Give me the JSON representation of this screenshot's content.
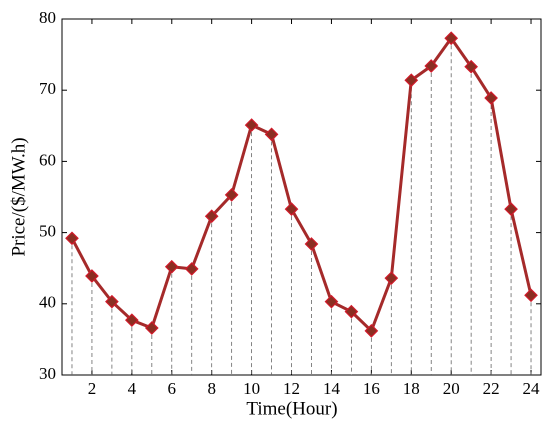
{
  "chart_data": {
    "type": "line",
    "x_label": "Time(Hour)",
    "y_label": "Price/($/MW.h)",
    "x": [
      1,
      2,
      3,
      4,
      5,
      6,
      7,
      8,
      9,
      10,
      11,
      12,
      13,
      14,
      15,
      16,
      17,
      18,
      19,
      20,
      21,
      22,
      23,
      24
    ],
    "series": [
      {
        "color": "#a52a2a",
        "marker_color": "#8b2e22",
        "values": [
          49.2,
          43.9,
          40.3,
          37.7,
          36.6,
          45.2,
          44.9,
          52.3,
          55.3,
          65.1,
          63.8,
          53.3,
          48.4,
          40.3,
          38.9,
          36.2,
          43.6,
          71.4,
          73.4,
          77.3,
          73.3,
          68.9,
          53.3,
          41.2
        ]
      }
    ],
    "xlim": [
      0.5,
      24.5
    ],
    "xticks": [
      2,
      4,
      6,
      8,
      10,
      12,
      14,
      16,
      18,
      20,
      22,
      24
    ],
    "ylim": [
      30,
      80
    ],
    "yticks": [
      30,
      40,
      50,
      60,
      70,
      80
    ],
    "drop_lines": true
  }
}
